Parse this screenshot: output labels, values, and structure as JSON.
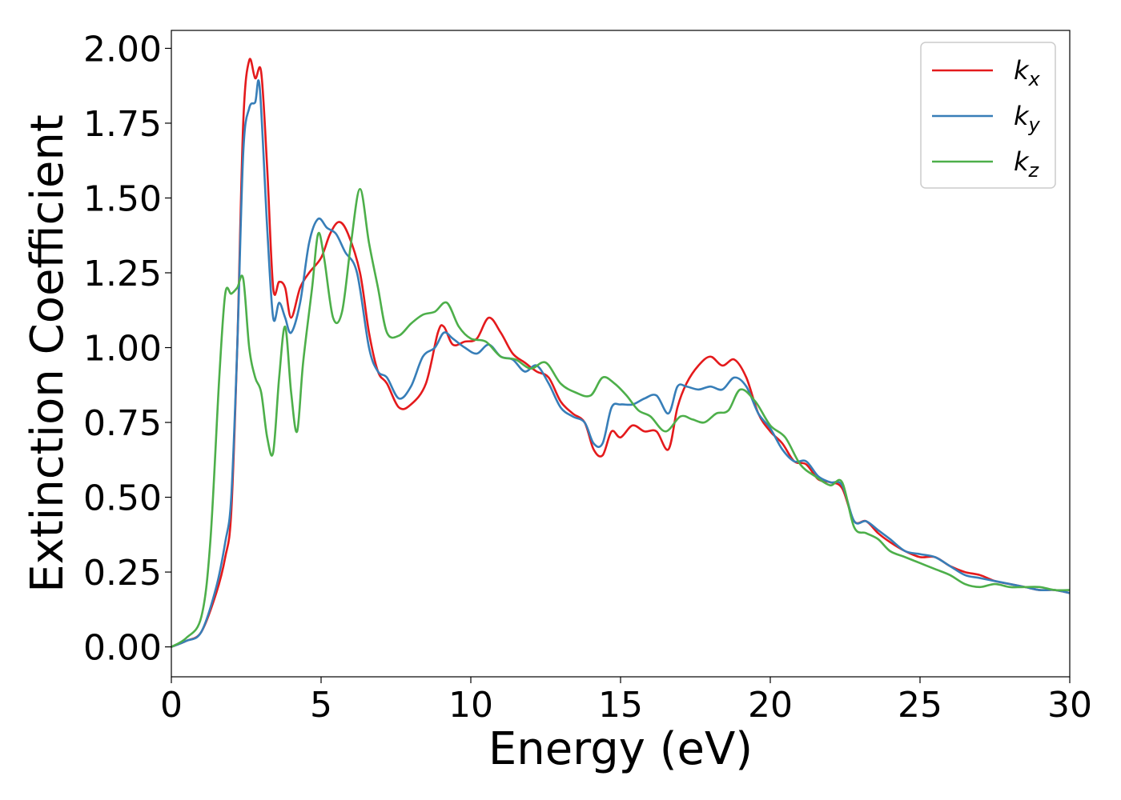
{
  "chart_data": {
    "type": "line",
    "xlabel": "Energy (eV)",
    "ylabel": "Extinction Coefficient",
    "xlim": [
      0,
      30
    ],
    "ylim": [
      -0.1,
      2.06
    ],
    "xticks": [
      0,
      5,
      10,
      15,
      20,
      25,
      30
    ],
    "yticks": [
      0.0,
      0.25,
      0.5,
      0.75,
      1.0,
      1.25,
      1.5,
      1.75,
      2.0
    ],
    "xtick_labels": [
      "0",
      "5",
      "10",
      "15",
      "20",
      "25",
      "30"
    ],
    "ytick_labels": [
      "0.00",
      "0.25",
      "0.50",
      "0.75",
      "1.00",
      "1.25",
      "1.50",
      "1.75",
      "2.00"
    ],
    "grid": false,
    "legend_position": "top-right",
    "series": [
      {
        "name": "k",
        "subscript": "x",
        "color": "#e41a1c",
        "points": [
          [
            0,
            0
          ],
          [
            0.5,
            0.02
          ],
          [
            1.0,
            0.05
          ],
          [
            1.5,
            0.18
          ],
          [
            1.8,
            0.3
          ],
          [
            2.0,
            0.45
          ],
          [
            2.2,
            1.0
          ],
          [
            2.4,
            1.75
          ],
          [
            2.6,
            1.96
          ],
          [
            2.8,
            1.9
          ],
          [
            3.0,
            1.92
          ],
          [
            3.2,
            1.6
          ],
          [
            3.4,
            1.2
          ],
          [
            3.6,
            1.22
          ],
          [
            3.8,
            1.2
          ],
          [
            4.0,
            1.1
          ],
          [
            4.3,
            1.2
          ],
          [
            4.6,
            1.25
          ],
          [
            5.0,
            1.3
          ],
          [
            5.3,
            1.38
          ],
          [
            5.6,
            1.42
          ],
          [
            5.9,
            1.38
          ],
          [
            6.3,
            1.25
          ],
          [
            6.6,
            1.05
          ],
          [
            6.9,
            0.92
          ],
          [
            7.2,
            0.88
          ],
          [
            7.6,
            0.8
          ],
          [
            8.0,
            0.81
          ],
          [
            8.5,
            0.88
          ],
          [
            8.9,
            1.05
          ],
          [
            9.1,
            1.07
          ],
          [
            9.4,
            1.01
          ],
          [
            9.8,
            1.02
          ],
          [
            10.2,
            1.03
          ],
          [
            10.6,
            1.1
          ],
          [
            11.0,
            1.05
          ],
          [
            11.4,
            0.98
          ],
          [
            11.8,
            0.95
          ],
          [
            12.2,
            0.92
          ],
          [
            12.6,
            0.9
          ],
          [
            13.0,
            0.82
          ],
          [
            13.4,
            0.78
          ],
          [
            13.8,
            0.75
          ],
          [
            14.1,
            0.66
          ],
          [
            14.4,
            0.64
          ],
          [
            14.7,
            0.72
          ],
          [
            15.0,
            0.7
          ],
          [
            15.4,
            0.74
          ],
          [
            15.8,
            0.72
          ],
          [
            16.2,
            0.72
          ],
          [
            16.6,
            0.66
          ],
          [
            16.9,
            0.8
          ],
          [
            17.2,
            0.88
          ],
          [
            17.6,
            0.94
          ],
          [
            18.0,
            0.97
          ],
          [
            18.4,
            0.94
          ],
          [
            18.8,
            0.96
          ],
          [
            19.2,
            0.9
          ],
          [
            19.6,
            0.78
          ],
          [
            20.0,
            0.72
          ],
          [
            20.4,
            0.68
          ],
          [
            20.8,
            0.62
          ],
          [
            21.2,
            0.61
          ],
          [
            21.6,
            0.56
          ],
          [
            22.0,
            0.55
          ],
          [
            22.4,
            0.53
          ],
          [
            22.8,
            0.42
          ],
          [
            23.2,
            0.42
          ],
          [
            23.6,
            0.38
          ],
          [
            24.0,
            0.35
          ],
          [
            24.5,
            0.32
          ],
          [
            25.0,
            0.3
          ],
          [
            25.5,
            0.3
          ],
          [
            26.0,
            0.27
          ],
          [
            26.5,
            0.25
          ],
          [
            27.0,
            0.24
          ],
          [
            27.5,
            0.22
          ],
          [
            28.0,
            0.21
          ],
          [
            28.5,
            0.2
          ],
          [
            29.0,
            0.19
          ],
          [
            29.5,
            0.19
          ],
          [
            30.0,
            0.18
          ]
        ]
      },
      {
        "name": "k",
        "subscript": "y",
        "color": "#377eb8",
        "points": [
          [
            0,
            0
          ],
          [
            0.5,
            0.02
          ],
          [
            1.0,
            0.05
          ],
          [
            1.5,
            0.2
          ],
          [
            1.8,
            0.35
          ],
          [
            2.0,
            0.5
          ],
          [
            2.2,
            1.0
          ],
          [
            2.4,
            1.65
          ],
          [
            2.6,
            1.8
          ],
          [
            2.8,
            1.82
          ],
          [
            2.95,
            1.87
          ],
          [
            3.2,
            1.4
          ],
          [
            3.4,
            1.1
          ],
          [
            3.6,
            1.15
          ],
          [
            3.8,
            1.1
          ],
          [
            4.0,
            1.05
          ],
          [
            4.3,
            1.15
          ],
          [
            4.6,
            1.35
          ],
          [
            4.9,
            1.43
          ],
          [
            5.2,
            1.4
          ],
          [
            5.5,
            1.38
          ],
          [
            5.8,
            1.32
          ],
          [
            6.2,
            1.25
          ],
          [
            6.6,
            1.0
          ],
          [
            6.9,
            0.92
          ],
          [
            7.2,
            0.9
          ],
          [
            7.6,
            0.83
          ],
          [
            8.0,
            0.87
          ],
          [
            8.4,
            0.97
          ],
          [
            8.8,
            1.0
          ],
          [
            9.1,
            1.05
          ],
          [
            9.4,
            1.03
          ],
          [
            9.8,
            1.0
          ],
          [
            10.2,
            0.98
          ],
          [
            10.6,
            1.01
          ],
          [
            11.0,
            0.97
          ],
          [
            11.4,
            0.96
          ],
          [
            11.8,
            0.92
          ],
          [
            12.2,
            0.94
          ],
          [
            12.6,
            0.88
          ],
          [
            13.0,
            0.8
          ],
          [
            13.4,
            0.77
          ],
          [
            13.8,
            0.75
          ],
          [
            14.1,
            0.68
          ],
          [
            14.4,
            0.68
          ],
          [
            14.7,
            0.8
          ],
          [
            15.0,
            0.81
          ],
          [
            15.4,
            0.81
          ],
          [
            15.8,
            0.83
          ],
          [
            16.2,
            0.84
          ],
          [
            16.6,
            0.78
          ],
          [
            16.9,
            0.87
          ],
          [
            17.2,
            0.87
          ],
          [
            17.6,
            0.86
          ],
          [
            18.0,
            0.87
          ],
          [
            18.4,
            0.86
          ],
          [
            18.8,
            0.9
          ],
          [
            19.2,
            0.87
          ],
          [
            19.6,
            0.78
          ],
          [
            20.0,
            0.73
          ],
          [
            20.4,
            0.66
          ],
          [
            20.8,
            0.62
          ],
          [
            21.2,
            0.62
          ],
          [
            21.6,
            0.57
          ],
          [
            22.0,
            0.55
          ],
          [
            22.4,
            0.54
          ],
          [
            22.8,
            0.42
          ],
          [
            23.2,
            0.42
          ],
          [
            23.6,
            0.39
          ],
          [
            24.0,
            0.36
          ],
          [
            24.5,
            0.32
          ],
          [
            25.0,
            0.31
          ],
          [
            25.5,
            0.3
          ],
          [
            26.0,
            0.27
          ],
          [
            26.5,
            0.24
          ],
          [
            27.0,
            0.23
          ],
          [
            27.5,
            0.22
          ],
          [
            28.0,
            0.21
          ],
          [
            28.5,
            0.2
          ],
          [
            29.0,
            0.19
          ],
          [
            29.5,
            0.19
          ],
          [
            30.0,
            0.18
          ]
        ]
      },
      {
        "name": "k",
        "subscript": "z",
        "color": "#4daf4a",
        "points": [
          [
            0,
            0
          ],
          [
            0.5,
            0.03
          ],
          [
            1.0,
            0.1
          ],
          [
            1.3,
            0.35
          ],
          [
            1.6,
            0.9
          ],
          [
            1.8,
            1.18
          ],
          [
            2.0,
            1.18
          ],
          [
            2.2,
            1.2
          ],
          [
            2.4,
            1.23
          ],
          [
            2.6,
            1.0
          ],
          [
            2.8,
            0.9
          ],
          [
            3.0,
            0.85
          ],
          [
            3.2,
            0.7
          ],
          [
            3.4,
            0.65
          ],
          [
            3.6,
            0.9
          ],
          [
            3.8,
            1.07
          ],
          [
            4.0,
            0.85
          ],
          [
            4.2,
            0.72
          ],
          [
            4.4,
            0.95
          ],
          [
            4.7,
            1.2
          ],
          [
            4.9,
            1.38
          ],
          [
            5.1,
            1.3
          ],
          [
            5.4,
            1.1
          ],
          [
            5.7,
            1.12
          ],
          [
            6.0,
            1.35
          ],
          [
            6.3,
            1.53
          ],
          [
            6.6,
            1.35
          ],
          [
            6.9,
            1.2
          ],
          [
            7.2,
            1.05
          ],
          [
            7.6,
            1.04
          ],
          [
            8.0,
            1.08
          ],
          [
            8.4,
            1.11
          ],
          [
            8.8,
            1.12
          ],
          [
            9.2,
            1.15
          ],
          [
            9.6,
            1.07
          ],
          [
            10.0,
            1.03
          ],
          [
            10.5,
            1.02
          ],
          [
            11.0,
            0.97
          ],
          [
            11.5,
            0.96
          ],
          [
            12.0,
            0.93
          ],
          [
            12.5,
            0.95
          ],
          [
            13.0,
            0.88
          ],
          [
            13.5,
            0.85
          ],
          [
            14.0,
            0.84
          ],
          [
            14.4,
            0.9
          ],
          [
            14.8,
            0.88
          ],
          [
            15.2,
            0.84
          ],
          [
            15.6,
            0.79
          ],
          [
            16.0,
            0.77
          ],
          [
            16.5,
            0.72
          ],
          [
            17.0,
            0.77
          ],
          [
            17.4,
            0.76
          ],
          [
            17.8,
            0.75
          ],
          [
            18.2,
            0.78
          ],
          [
            18.6,
            0.79
          ],
          [
            19.0,
            0.86
          ],
          [
            19.5,
            0.82
          ],
          [
            20.0,
            0.74
          ],
          [
            20.5,
            0.7
          ],
          [
            21.0,
            0.61
          ],
          [
            21.5,
            0.57
          ],
          [
            22.0,
            0.54
          ],
          [
            22.4,
            0.55
          ],
          [
            22.8,
            0.4
          ],
          [
            23.2,
            0.38
          ],
          [
            23.6,
            0.36
          ],
          [
            24.0,
            0.32
          ],
          [
            24.5,
            0.3
          ],
          [
            25.0,
            0.28
          ],
          [
            25.5,
            0.26
          ],
          [
            26.0,
            0.24
          ],
          [
            26.5,
            0.21
          ],
          [
            27.0,
            0.2
          ],
          [
            27.5,
            0.21
          ],
          [
            28.0,
            0.2
          ],
          [
            28.5,
            0.2
          ],
          [
            29.0,
            0.2
          ],
          [
            29.5,
            0.19
          ],
          [
            30.0,
            0.19
          ]
        ]
      }
    ]
  }
}
